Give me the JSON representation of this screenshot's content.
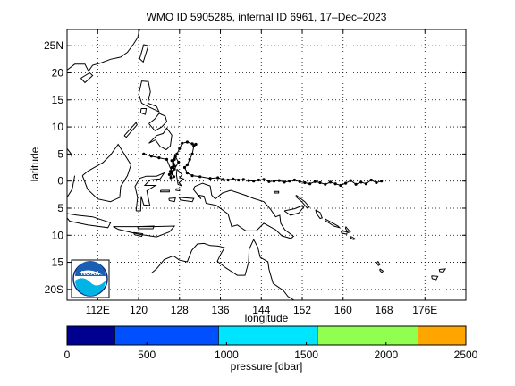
{
  "title": "WMO ID 5905285, internal ID 6961, 17–Dec–2023",
  "map": {
    "xlabel": "longitude",
    "ylabel": "latitude",
    "lon_range": [
      106,
      184
    ],
    "lat_range": [
      -22,
      28
    ],
    "lon_ticks": [
      {
        "value": 112,
        "label": "112E"
      },
      {
        "value": 120,
        "label": "120"
      },
      {
        "value": 128,
        "label": "128"
      },
      {
        "value": 136,
        "label": "136"
      },
      {
        "value": 144,
        "label": "144"
      },
      {
        "value": 152,
        "label": "152"
      },
      {
        "value": 160,
        "label": "160"
      },
      {
        "value": 168,
        "label": "168"
      },
      {
        "value": 176,
        "label": "176E"
      }
    ],
    "lat_ticks": [
      {
        "value": 25,
        "label": "25N"
      },
      {
        "value": 20,
        "label": "20"
      },
      {
        "value": 15,
        "label": "15"
      },
      {
        "value": 10,
        "label": "10"
      },
      {
        "value": 5,
        "label": "5"
      },
      {
        "value": 0,
        "label": "0"
      },
      {
        "value": -5,
        "label": "5"
      },
      {
        "value": -10,
        "label": "10"
      },
      {
        "value": -15,
        "label": "15"
      },
      {
        "value": -20,
        "label": "20S"
      }
    ],
    "grid": "dotted",
    "logo": "NOAA",
    "logo_colors": {
      "blue": "#1a5fb4",
      "navy": "#0a2a78",
      "cyan": "#00b4e6"
    }
  },
  "trajectory": [
    [
      167.5,
      0.0
    ],
    [
      166.5,
      -0.3
    ],
    [
      165.5,
      0.2
    ],
    [
      164.5,
      -0.5
    ],
    [
      163.5,
      -0.2
    ],
    [
      162.5,
      -0.6
    ],
    [
      161.5,
      0.1
    ],
    [
      160.5,
      -0.4
    ],
    [
      159.5,
      -0.8
    ],
    [
      158.5,
      -0.5
    ],
    [
      157.5,
      -0.2
    ],
    [
      156.5,
      -0.6
    ],
    [
      155.5,
      -0.3
    ],
    [
      154.5,
      -0.1
    ],
    [
      153.5,
      -0.5
    ],
    [
      152.5,
      -0.3
    ],
    [
      151.5,
      -0.1
    ],
    [
      150.5,
      0.2
    ],
    [
      149.5,
      0.0
    ],
    [
      148.5,
      -0.2
    ],
    [
      147.5,
      0.1
    ],
    [
      146.5,
      0.0
    ],
    [
      145.5,
      -0.1
    ],
    [
      144.5,
      0.3
    ],
    [
      143.5,
      0.2
    ],
    [
      142.5,
      0.0
    ],
    [
      141.5,
      0.1
    ],
    [
      140.5,
      0.3
    ],
    [
      139.5,
      0.2
    ],
    [
      138.5,
      0.4
    ],
    [
      137.5,
      0.2
    ],
    [
      136.5,
      0.3
    ],
    [
      135.5,
      0.6
    ],
    [
      134.0,
      0.5
    ],
    [
      132.0,
      0.8
    ],
    [
      130.5,
      1.0
    ],
    [
      129.5,
      1.5
    ],
    [
      129.0,
      2.5
    ],
    [
      129.5,
      3.0
    ],
    [
      130.0,
      4.0
    ],
    [
      130.5,
      5.0
    ],
    [
      130.8,
      6.5
    ],
    [
      131.2,
      6.8
    ],
    [
      130.5,
      6.9
    ],
    [
      129.5,
      7.2
    ],
    [
      128.5,
      7.0
    ],
    [
      128.0,
      6.0
    ],
    [
      127.5,
      5.0
    ],
    [
      127.0,
      4.0
    ],
    [
      126.8,
      3.2
    ],
    [
      126.5,
      2.5
    ],
    [
      126.2,
      1.8
    ],
    [
      126.0,
      1.2
    ],
    [
      126.3,
      0.6
    ],
    [
      126.6,
      1.8
    ],
    [
      127.0,
      2.8
    ],
    [
      126.5,
      3.8
    ],
    [
      127.2,
      4.5
    ],
    [
      127.8,
      3.5
    ],
    [
      127.0,
      2.2
    ],
    [
      126.4,
      1.5
    ],
    [
      126.9,
      0.8
    ],
    [
      125.5,
      4.0
    ],
    [
      124.0,
      4.3
    ],
    [
      122.5,
      4.6
    ],
    [
      121.0,
      5.0
    ]
  ],
  "colorbar": {
    "label": "pressure [dbar]",
    "range": [
      0,
      2500
    ],
    "tick_values": [
      0,
      500,
      1000,
      1500,
      2000,
      2500
    ],
    "tick_labels": [
      "0",
      "500",
      "1000",
      "1500",
      "2000",
      "2500"
    ],
    "segments": [
      {
        "from": 0,
        "to": 300,
        "color": "#000090"
      },
      {
        "from": 300,
        "to": 950,
        "color": "#0050ff"
      },
      {
        "from": 950,
        "to": 1570,
        "color": "#00e5ff"
      },
      {
        "from": 1570,
        "to": 2200,
        "color": "#90ff50"
      },
      {
        "from": 2200,
        "to": 2500,
        "color": "#ffa500"
      }
    ]
  }
}
